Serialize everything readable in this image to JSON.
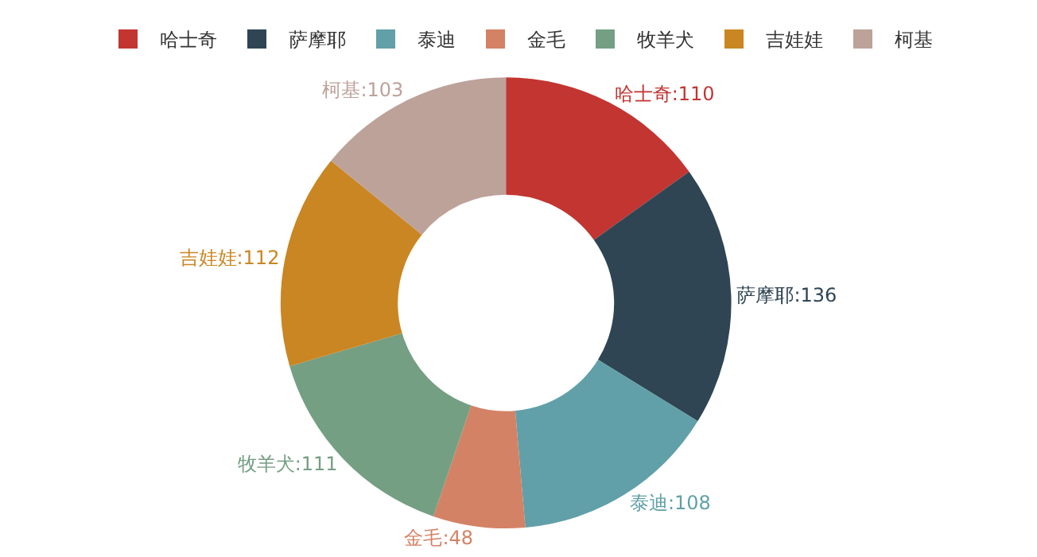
{
  "chart_data": {
    "type": "donut",
    "categories": [
      "哈士奇",
      "萨摩耶",
      "泰迪",
      "金毛",
      "牧羊犬",
      "吉娃娃",
      "柯基"
    ],
    "values": [
      110,
      136,
      108,
      48,
      111,
      112,
      103
    ],
    "colors": [
      "#c23531",
      "#2f4554",
      "#61a0a8",
      "#d48265",
      "#749f83",
      "#ca8622",
      "#bda29a"
    ],
    "value_labels": [
      "哈士奇:110",
      "萨摩耶:136",
      "泰迪:108",
      "金毛:48",
      "牧羊犬:111",
      "吉娃娃:112",
      "柯基:103"
    ],
    "legend": "top"
  }
}
